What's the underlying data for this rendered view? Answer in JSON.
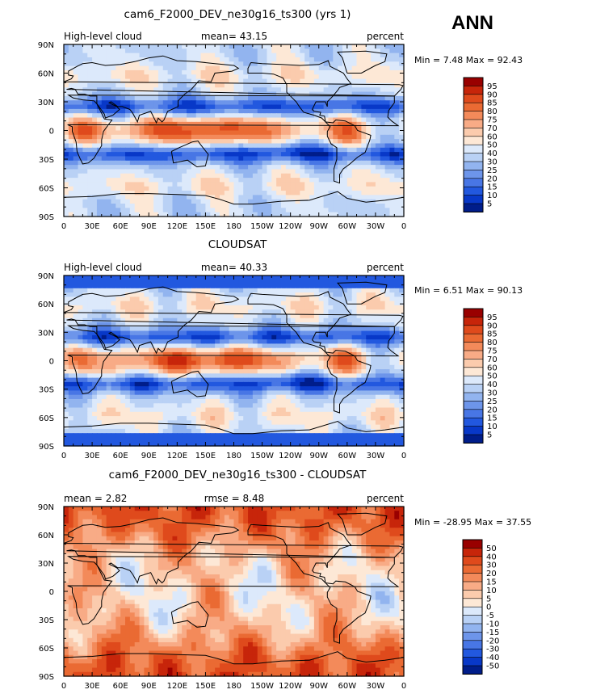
{
  "season_label": "ANN",
  "panels": [
    {
      "title": "cam6_F2000_DEV_ne30g16_ts300 (yrs 1)",
      "left_label": "High-level cloud",
      "center_label": "mean=  43.15",
      "right_label": "percent",
      "minmax_label": "Min =    7.48 Max =  92.43",
      "colorbar_labels": [
        "95",
        "90",
        "85",
        "80",
        "75",
        "70",
        "60",
        "50",
        "40",
        "30",
        "25",
        "20",
        "15",
        "10",
        "5"
      ],
      "colorbar_colors": [
        "#990000",
        "#c7250a",
        "#df4a1c",
        "#ea6a33",
        "#f38a5a",
        "#f8ab86",
        "#fbcbad",
        "#fde8d6",
        "#dce9fb",
        "#b9d1f5",
        "#92b4ef",
        "#6d95ea",
        "#4876e5",
        "#2258df",
        "#0838c8",
        "#001d8a"
      ]
    },
    {
      "title": "CLOUDSAT",
      "left_label": "High-level cloud",
      "center_label": "mean=  40.33",
      "right_label": "percent",
      "minmax_label": "Min =    6.51 Max =  90.13",
      "colorbar_labels": [
        "95",
        "90",
        "85",
        "80",
        "75",
        "70",
        "60",
        "50",
        "40",
        "30",
        "25",
        "20",
        "15",
        "10",
        "5"
      ],
      "colorbar_colors": [
        "#990000",
        "#c7250a",
        "#df4a1c",
        "#ea6a33",
        "#f38a5a",
        "#f8ab86",
        "#fbcbad",
        "#fde8d6",
        "#dce9fb",
        "#b9d1f5",
        "#92b4ef",
        "#6d95ea",
        "#4876e5",
        "#2258df",
        "#0838c8",
        "#001d8a"
      ]
    },
    {
      "title": "cam6_F2000_DEV_ne30g16_ts300 - CLOUDSAT",
      "left_label": "mean =    2.82",
      "center_label": "rmse =    8.48",
      "right_label": "percent",
      "minmax_label": "Min = -28.95 Max =  37.55",
      "colorbar_labels": [
        "50",
        "40",
        "30",
        "20",
        "15",
        "10",
        "5",
        "0",
        "-5",
        "-10",
        "-15",
        "-20",
        "-30",
        "-40",
        "-50"
      ],
      "colorbar_colors": [
        "#990000",
        "#c7250a",
        "#df4a1c",
        "#ea6a33",
        "#f38a5a",
        "#f8ab86",
        "#fbcbad",
        "#fde8d6",
        "#dce9fb",
        "#b9d1f5",
        "#92b4ef",
        "#6d95ea",
        "#4876e5",
        "#2258df",
        "#0838c8",
        "#001d8a"
      ]
    }
  ],
  "x_tick_labels": [
    "0",
    "30E",
    "60E",
    "90E",
    "120E",
    "150E",
    "180",
    "150W",
    "120W",
    "90W",
    "60W",
    "30W",
    "0"
  ],
  "y_tick_labels": [
    "90N",
    "60N",
    "30N",
    "0",
    "30S",
    "60S",
    "90S"
  ],
  "chart_data": [
    {
      "type": "heatmap",
      "title": "cam6_F2000_DEV_ne30g16_ts300 (yrs 1)",
      "variable": "High-level cloud",
      "units": "percent",
      "mean": 43.15,
      "min": 7.48,
      "max": 92.43,
      "x_axis": "longitude",
      "y_axis": "latitude",
      "xlim": [
        0,
        360
      ],
      "ylim": [
        -90,
        90
      ],
      "levels": [
        5,
        10,
        15,
        20,
        25,
        30,
        40,
        50,
        60,
        70,
        75,
        80,
        85,
        90,
        95
      ]
    },
    {
      "type": "heatmap",
      "title": "CLOUDSAT",
      "variable": "High-level cloud",
      "units": "percent",
      "mean": 40.33,
      "min": 6.51,
      "max": 90.13,
      "x_axis": "longitude",
      "y_axis": "latitude",
      "xlim": [
        0,
        360
      ],
      "ylim": [
        -90,
        90
      ],
      "levels": [
        5,
        10,
        15,
        20,
        25,
        30,
        40,
        50,
        60,
        70,
        75,
        80,
        85,
        90,
        95
      ]
    },
    {
      "type": "heatmap",
      "title": "cam6_F2000_DEV_ne30g16_ts300 - CLOUDSAT",
      "units": "percent",
      "mean": 2.82,
      "rmse": 8.48,
      "min": -28.95,
      "max": 37.55,
      "x_axis": "longitude",
      "y_axis": "latitude",
      "xlim": [
        0,
        360
      ],
      "ylim": [
        -90,
        90
      ],
      "levels": [
        -50,
        -40,
        -30,
        -20,
        -15,
        -10,
        -5,
        0,
        5,
        10,
        15,
        20,
        30,
        40,
        50
      ]
    }
  ]
}
